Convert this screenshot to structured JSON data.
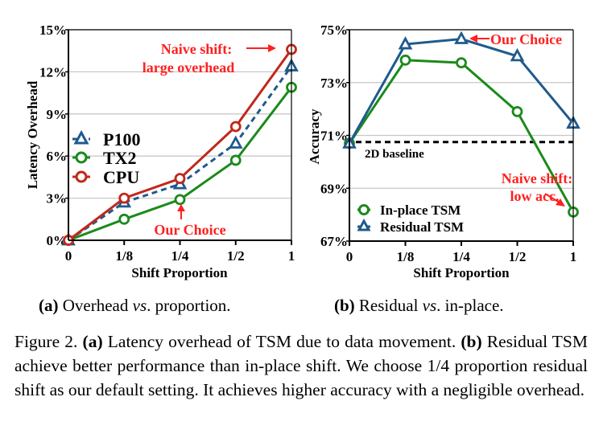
{
  "chart_data": [
    {
      "type": "line",
      "panel": "a",
      "xlabel": "Shift Proportion",
      "ylabel": "Latency Overhead",
      "categories": [
        "0",
        "1/8",
        "1/4",
        "1/2",
        "1"
      ],
      "yticks": [
        "0%",
        "3%",
        "6%",
        "9%",
        "12%",
        "15%"
      ],
      "ytick_values": [
        0,
        3,
        6,
        9,
        12,
        15
      ],
      "ylim": [
        0,
        15
      ],
      "grid": true,
      "legend_position": "center-left",
      "series": [
        {
          "name": "P100",
          "marker": "triangle",
          "style": "dashed",
          "color": "#1f5a8c",
          "values": [
            0,
            2.7,
            4.0,
            6.9,
            12.4
          ]
        },
        {
          "name": "TX2",
          "marker": "circle",
          "style": "solid",
          "color": "#1b8a1b",
          "values": [
            0,
            1.5,
            2.9,
            5.7,
            10.9
          ]
        },
        {
          "name": "CPU",
          "marker": "circle",
          "style": "solid",
          "color": "#c0281b",
          "values": [
            0,
            3.0,
            4.4,
            8.1,
            13.6
          ]
        }
      ],
      "annotations": [
        {
          "text_lines": [
            "Naive shift:",
            "large overhead"
          ],
          "points_to": "1",
          "color": "#ff2020"
        },
        {
          "text_lines": [
            "Our Choice"
          ],
          "points_to": "1/4",
          "color": "#ff2020"
        }
      ]
    },
    {
      "type": "line",
      "panel": "b",
      "xlabel": "Shift Proportion",
      "ylabel": "Accuracy",
      "categories": [
        "0",
        "1/8",
        "1/4",
        "1/2",
        "1"
      ],
      "yticks": [
        "67%",
        "69%",
        "71%",
        "73%",
        "75%"
      ],
      "ytick_values": [
        67,
        69,
        71,
        73,
        75
      ],
      "ylim": [
        67,
        75
      ],
      "grid": true,
      "legend_position": "bottom-left",
      "series": [
        {
          "name": "In-place TSM",
          "marker": "circle",
          "style": "solid",
          "color": "#1b8a1b",
          "values": [
            70.7,
            73.85,
            73.75,
            71.9,
            68.1
          ]
        },
        {
          "name": "Residual TSM",
          "marker": "triangle",
          "style": "solid",
          "color": "#1f5a8c",
          "values": [
            70.7,
            74.45,
            74.65,
            74.0,
            71.45
          ]
        }
      ],
      "reference_line": {
        "label": "2D baseline",
        "value": 70.75,
        "style": "dashed",
        "color": "#000000"
      },
      "annotations": [
        {
          "text_lines": [
            "Our Choice"
          ],
          "points_to": "1/4",
          "color": "#ff2020"
        },
        {
          "text_lines": [
            "Naive shift:",
            "low acc."
          ],
          "points_to": "1",
          "color": "#ff2020"
        }
      ]
    }
  ],
  "subcaptions": {
    "a": {
      "label": "(a)",
      "text_pre": " Overhead ",
      "text_italic": "vs",
      "text_post": ". proportion."
    },
    "b": {
      "label": "(b)",
      "text_pre": " Residual ",
      "text_italic": "vs",
      "text_post": ". in-place."
    }
  },
  "caption": {
    "prefix": "Figure 2. ",
    "a_label": "(a)",
    "a_text": " Latency overhead of TSM due to data movement.",
    "b_label": "(b)",
    "b_text": " Residual TSM achieve better performance than in-place shift. We choose 1/4 proportion residual shift as our default setting. It achieves higher accuracy with a negligible overhead."
  }
}
